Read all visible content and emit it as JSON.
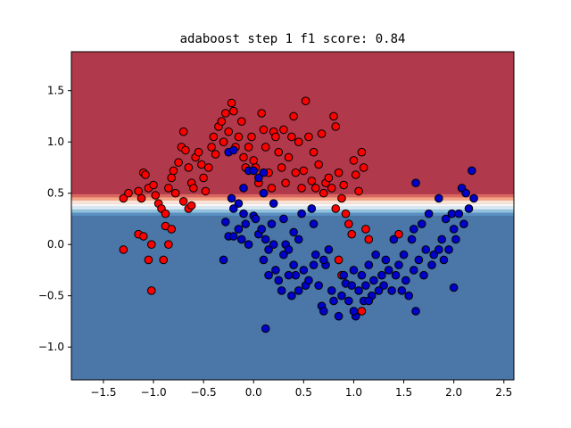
{
  "chart_data": {
    "type": "scatter",
    "title": "adaboost step 1 f1 score: 0.84",
    "xlabel": "",
    "ylabel": "",
    "xlim": [
      -1.82,
      2.6
    ],
    "ylim": [
      -1.32,
      1.88
    ],
    "x_ticks": [
      -1.5,
      -1.0,
      -0.5,
      0.0,
      0.5,
      1.0,
      1.5,
      2.0,
      2.5
    ],
    "x_tick_labels": [
      "−1.5",
      "−1.0",
      "−0.5",
      "0.0",
      "0.5",
      "1.0",
      "1.5",
      "2.0",
      "2.5"
    ],
    "y_ticks": [
      -1.0,
      -0.5,
      0.0,
      0.5,
      1.0,
      1.5
    ],
    "y_tick_labels": [
      "−1.0",
      "−0.5",
      "0.0",
      "0.5",
      "1.0",
      "1.5"
    ],
    "grid": false,
    "decision_regions": {
      "upper_color": "#b0394c",
      "lower_color": "#4a76a8",
      "boundary_y": 0.37,
      "bands": [
        {
          "y0": 0.46,
          "y1": 0.49,
          "color": "#d9665f"
        },
        {
          "y0": 0.43,
          "y1": 0.46,
          "color": "#f3a585"
        },
        {
          "y0": 0.4,
          "y1": 0.43,
          "color": "#fbe3d4"
        },
        {
          "y0": 0.37,
          "y1": 0.4,
          "color": "#f6f6f6"
        },
        {
          "y0": 0.34,
          "y1": 0.37,
          "color": "#d6e6f1"
        },
        {
          "y0": 0.31,
          "y1": 0.34,
          "color": "#93c2dd"
        },
        {
          "y0": 0.28,
          "y1": 0.31,
          "color": "#5a8fc1"
        }
      ]
    },
    "series": [
      {
        "color": "#ff0000",
        "points": [
          [
            -1.3,
            0.45
          ],
          [
            -1.25,
            0.5
          ],
          [
            -1.15,
            0.52
          ],
          [
            -1.12,
            0.45
          ],
          [
            -1.1,
            0.7
          ],
          [
            -1.08,
            0.68
          ],
          [
            -1.05,
            0.55
          ],
          [
            -1.0,
            0.58
          ],
          [
            -0.98,
            0.48
          ],
          [
            -0.95,
            0.4
          ],
          [
            -0.92,
            0.35
          ],
          [
            -0.88,
            0.3
          ],
          [
            -0.85,
            0.55
          ],
          [
            -0.82,
            0.65
          ],
          [
            -0.8,
            0.72
          ],
          [
            -0.78,
            0.5
          ],
          [
            -0.75,
            0.8
          ],
          [
            -0.72,
            0.95
          ],
          [
            -0.7,
            1.1
          ],
          [
            -0.68,
            0.92
          ],
          [
            -0.65,
            0.75
          ],
          [
            -0.62,
            0.6
          ],
          [
            -0.6,
            0.55
          ],
          [
            -0.58,
            0.85
          ],
          [
            -0.55,
            0.9
          ],
          [
            -0.52,
            0.78
          ],
          [
            -0.5,
            0.65
          ],
          [
            -0.48,
            0.52
          ],
          [
            -0.45,
            0.75
          ],
          [
            -0.42,
            0.95
          ],
          [
            -0.4,
            1.05
          ],
          [
            -0.38,
            0.88
          ],
          [
            -0.35,
            1.15
          ],
          [
            -0.32,
            1.2
          ],
          [
            -0.3,
            1.0
          ],
          [
            -0.28,
            1.28
          ],
          [
            -0.25,
            1.1
          ],
          [
            -0.22,
            1.38
          ],
          [
            -0.2,
            1.3
          ],
          [
            -0.18,
            0.95
          ],
          [
            -0.15,
            1.05
          ],
          [
            -0.12,
            1.2
          ],
          [
            -0.1,
            0.85
          ],
          [
            -0.08,
            0.75
          ],
          [
            -0.05,
            0.95
          ],
          [
            -0.02,
            1.05
          ],
          [
            0.0,
            0.82
          ],
          [
            0.02,
            0.75
          ],
          [
            0.05,
            0.6
          ],
          [
            0.08,
            1.28
          ],
          [
            0.1,
            1.12
          ],
          [
            0.12,
            0.95
          ],
          [
            0.15,
            0.7
          ],
          [
            0.18,
            0.55
          ],
          [
            0.2,
            1.1
          ],
          [
            0.22,
            1.05
          ],
          [
            0.25,
            0.9
          ],
          [
            0.28,
            0.75
          ],
          [
            0.3,
            1.12
          ],
          [
            0.32,
            0.6
          ],
          [
            0.35,
            0.85
          ],
          [
            0.38,
            1.05
          ],
          [
            0.4,
            1.25
          ],
          [
            0.42,
            0.7
          ],
          [
            0.45,
            1.0
          ],
          [
            0.48,
            0.55
          ],
          [
            0.5,
            0.72
          ],
          [
            0.52,
            1.4
          ],
          [
            0.55,
            1.05
          ],
          [
            0.58,
            0.62
          ],
          [
            0.6,
            0.9
          ],
          [
            0.62,
            0.55
          ],
          [
            0.65,
            0.78
          ],
          [
            0.68,
            1.08
          ],
          [
            0.7,
            0.5
          ],
          [
            0.72,
            0.6
          ],
          [
            0.75,
            0.65
          ],
          [
            0.78,
            0.55
          ],
          [
            0.8,
            1.25
          ],
          [
            0.82,
            1.15
          ],
          [
            0.85,
            0.7
          ],
          [
            0.88,
            0.45
          ],
          [
            0.9,
            0.58
          ],
          [
            0.92,
            0.3
          ],
          [
            0.95,
            0.2
          ],
          [
            0.98,
            0.1
          ],
          [
            1.0,
            0.82
          ],
          [
            1.02,
            0.68
          ],
          [
            1.05,
            0.52
          ],
          [
            1.08,
            0.9
          ],
          [
            1.1,
            0.75
          ],
          [
            1.12,
            0.15
          ],
          [
            1.15,
            0.05
          ],
          [
            -1.3,
            -0.05
          ],
          [
            -1.15,
            0.1
          ],
          [
            -1.1,
            0.08
          ],
          [
            -1.05,
            -0.15
          ],
          [
            -1.02,
            -0.45
          ],
          [
            -0.9,
            -0.15
          ],
          [
            -0.88,
            0.18
          ],
          [
            -0.85,
            0.0
          ],
          [
            -0.82,
            0.15
          ],
          [
            -0.65,
            0.35
          ],
          [
            -0.62,
            0.38
          ],
          [
            0.82,
            0.35
          ],
          [
            0.85,
            -0.15
          ],
          [
            0.88,
            -0.3
          ],
          [
            1.08,
            -0.65
          ],
          [
            1.45,
            0.1
          ],
          [
            -1.02,
            0.0
          ],
          [
            -0.7,
            0.42
          ]
        ]
      },
      {
        "color": "#0000cc",
        "points": [
          [
            -0.25,
            0.9
          ],
          [
            -0.2,
            0.92
          ],
          [
            -0.1,
            0.55
          ],
          [
            -0.05,
            0.72
          ],
          [
            0.0,
            0.72
          ],
          [
            0.05,
            0.65
          ],
          [
            0.1,
            0.7
          ],
          [
            -0.22,
            0.45
          ],
          [
            -0.15,
            0.4
          ],
          [
            -0.28,
            0.22
          ],
          [
            -0.25,
            0.08
          ],
          [
            -0.2,
            0.08
          ],
          [
            -0.15,
            0.15
          ],
          [
            -0.12,
            0.05
          ],
          [
            -0.08,
            0.2
          ],
          [
            -0.3,
            -0.15
          ],
          [
            -0.05,
            0.0
          ],
          [
            0.0,
            0.28
          ],
          [
            0.02,
            0.25
          ],
          [
            0.05,
            0.1
          ],
          [
            0.08,
            0.15
          ],
          [
            0.1,
            -0.15
          ],
          [
            0.12,
            0.05
          ],
          [
            0.15,
            -0.05
          ],
          [
            0.18,
            0.2
          ],
          [
            0.2,
            0.0
          ],
          [
            0.22,
            -0.25
          ],
          [
            0.25,
            -0.35
          ],
          [
            0.28,
            -0.45
          ],
          [
            0.3,
            -0.1
          ],
          [
            0.32,
            0.0
          ],
          [
            0.35,
            -0.05
          ],
          [
            0.38,
            -0.5
          ],
          [
            0.4,
            -0.2
          ],
          [
            0.42,
            -0.3
          ],
          [
            0.45,
            -0.45
          ],
          [
            0.48,
            0.3
          ],
          [
            0.5,
            -0.25
          ],
          [
            0.52,
            -0.4
          ],
          [
            0.55,
            -0.35
          ],
          [
            0.58,
            0.35
          ],
          [
            0.6,
            0.2
          ],
          [
            0.62,
            -0.1
          ],
          [
            0.65,
            -0.4
          ],
          [
            0.68,
            -0.6
          ],
          [
            0.7,
            -0.65
          ],
          [
            0.72,
            -0.2
          ],
          [
            0.75,
            -0.05
          ],
          [
            0.78,
            -0.45
          ],
          [
            0.8,
            -0.55
          ],
          [
            0.85,
            -0.7
          ],
          [
            0.88,
            -0.5
          ],
          [
            0.9,
            -0.3
          ],
          [
            0.92,
            -0.38
          ],
          [
            0.95,
            -0.55
          ],
          [
            0.98,
            -0.4
          ],
          [
            1.0,
            -0.25
          ],
          [
            1.02,
            -0.7
          ],
          [
            1.05,
            -0.45
          ],
          [
            1.08,
            -0.3
          ],
          [
            1.1,
            -0.55
          ],
          [
            1.12,
            -0.4
          ],
          [
            1.15,
            -0.2
          ],
          [
            1.18,
            -0.5
          ],
          [
            1.2,
            -0.35
          ],
          [
            1.22,
            -0.1
          ],
          [
            1.25,
            -0.45
          ],
          [
            1.28,
            -0.3
          ],
          [
            1.3,
            -0.4
          ],
          [
            1.32,
            -0.15
          ],
          [
            1.35,
            -0.25
          ],
          [
            1.38,
            -0.45
          ],
          [
            1.4,
            0.05
          ],
          [
            1.42,
            -0.3
          ],
          [
            1.45,
            -0.2
          ],
          [
            1.48,
            -0.45
          ],
          [
            1.5,
            -0.1
          ],
          [
            1.52,
            -0.35
          ],
          [
            1.55,
            -0.5
          ],
          [
            1.58,
            0.05
          ],
          [
            1.6,
            -0.25
          ],
          [
            1.62,
            -0.65
          ],
          [
            1.65,
            -0.15
          ],
          [
            1.68,
            0.2
          ],
          [
            1.7,
            -0.3
          ],
          [
            1.72,
            -0.05
          ],
          [
            1.75,
            0.3
          ],
          [
            1.78,
            -0.2
          ],
          [
            1.8,
            -0.1
          ],
          [
            1.85,
            0.45
          ],
          [
            1.88,
            0.05
          ],
          [
            1.9,
            -0.15
          ],
          [
            1.92,
            0.25
          ],
          [
            1.95,
            -0.05
          ],
          [
            1.98,
            0.3
          ],
          [
            2.0,
            0.15
          ],
          [
            2.02,
            0.05
          ],
          [
            2.05,
            0.3
          ],
          [
            2.08,
            0.55
          ],
          [
            2.1,
            0.2
          ],
          [
            2.12,
            0.5
          ],
          [
            2.15,
            0.35
          ],
          [
            2.18,
            0.72
          ],
          [
            2.2,
            0.45
          ],
          [
            1.62,
            0.6
          ],
          [
            2.0,
            -0.42
          ],
          [
            0.12,
            -0.82
          ],
          [
            -0.2,
            0.35
          ],
          [
            0.1,
            0.5
          ],
          [
            0.2,
            0.4
          ],
          [
            0.3,
            0.25
          ],
          [
            0.4,
            0.12
          ],
          [
            0.45,
            0.05
          ],
          [
            -0.1,
            0.3
          ],
          [
            0.6,
            -0.2
          ],
          [
            0.7,
            -0.15
          ],
          [
            0.15,
            -0.3
          ],
          [
            0.35,
            -0.3
          ],
          [
            1.0,
            -0.65
          ],
          [
            1.15,
            -0.55
          ],
          [
            1.6,
            0.15
          ],
          [
            1.85,
            -0.05
          ]
        ]
      }
    ]
  }
}
